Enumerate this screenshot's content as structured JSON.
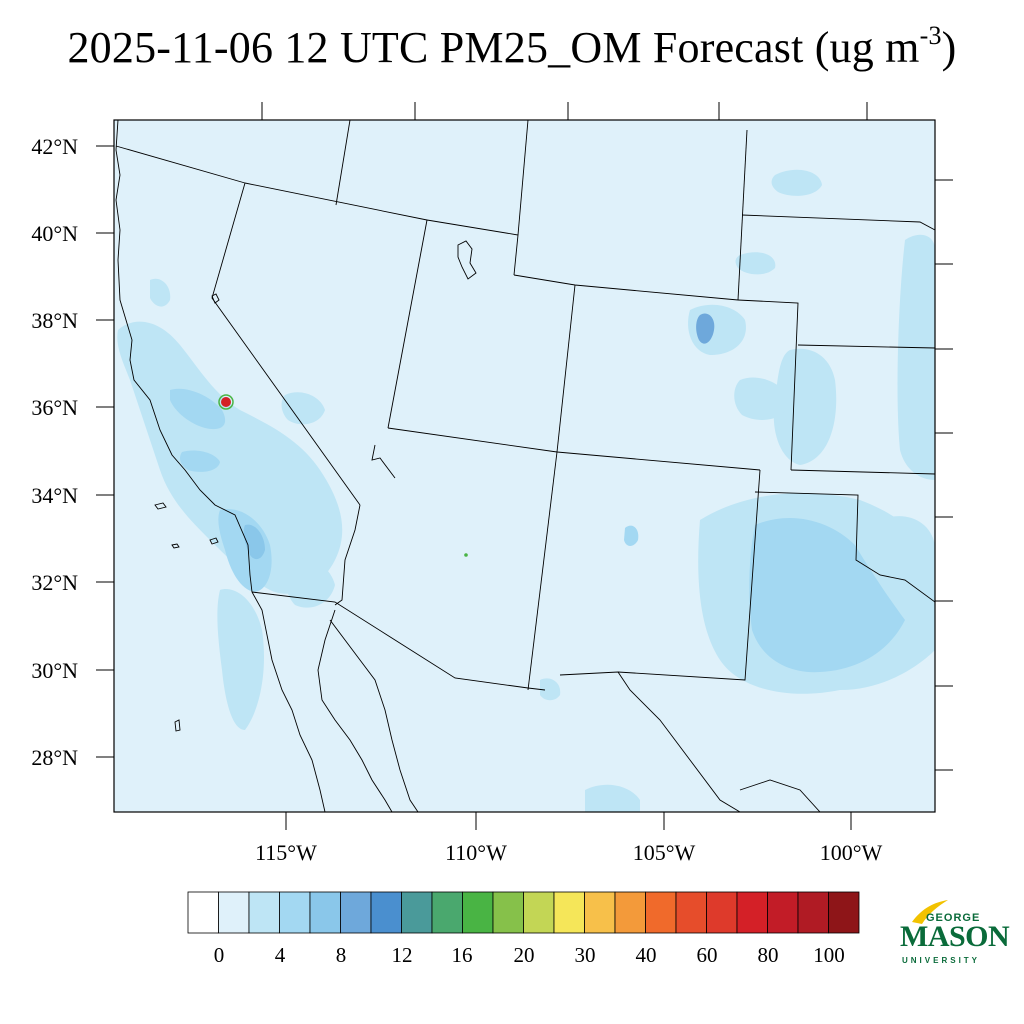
{
  "title": {
    "main": "2025-11-06 12 UTC PM25_OM Forecast (ug m",
    "superscript": "-3",
    "close": ")"
  },
  "map": {
    "latitude_labels": [
      "42°N",
      "40°N",
      "38°N",
      "36°N",
      "34°N",
      "32°N",
      "30°N",
      "28°N"
    ],
    "longitude_labels": [
      "115°W",
      "110°W",
      "105°W",
      "100°W"
    ],
    "fill_colors": {
      "background": "#dff1fa",
      "level_2_4": "#bee5f5",
      "level_4_6": "#a3d8f2",
      "level_6_8": "#8ac7ea",
      "level_8_10": "#6ea8db",
      "hotspot_red": "#d42027",
      "hotspot_green": "#49b444"
    }
  },
  "colorbar": {
    "labels": [
      "0",
      "4",
      "8",
      "12",
      "16",
      "20",
      "30",
      "40",
      "60",
      "80",
      "100"
    ],
    "colors": [
      "#ffffff",
      "#dff1fa",
      "#bee5f5",
      "#a3d8f2",
      "#8ac7ea",
      "#6ea8db",
      "#4a8fcf",
      "#4a9a9a",
      "#4aa86e",
      "#49b444",
      "#86c14a",
      "#c3d655",
      "#f5e659",
      "#f7c04a",
      "#f39a3a",
      "#f06a2b",
      "#e64d2b",
      "#de3a2b",
      "#d42027",
      "#c21c27",
      "#b01b24",
      "#8e1518"
    ]
  },
  "logo": {
    "line1": "GEORGE",
    "line2": "MASON",
    "line3": "UNIVERSITY",
    "color": "#0a6b3a"
  }
}
